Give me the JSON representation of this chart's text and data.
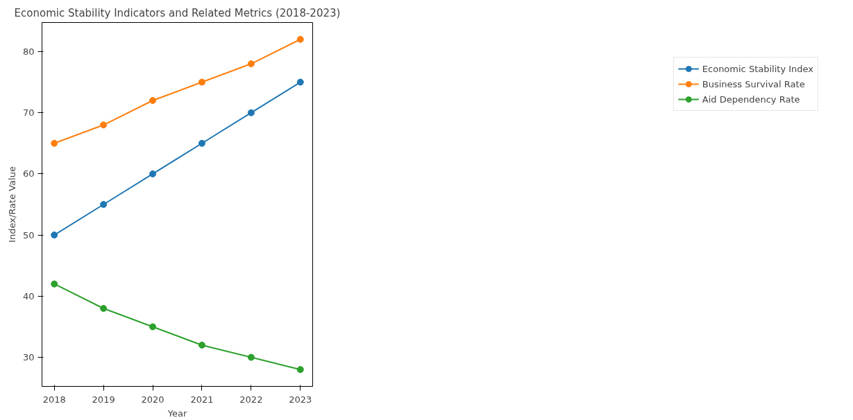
{
  "chart_data": {
    "type": "line",
    "title": "Economic Stability Indicators and Related Metrics (2018-2023)",
    "xlabel": "Year",
    "ylabel": "Index/Rate Value",
    "x": [
      2018,
      2019,
      2020,
      2021,
      2022,
      2023
    ],
    "series": [
      {
        "name": "Economic Stability Index",
        "color": "#1f77b4",
        "values": [
          50,
          55,
          60,
          65,
          70,
          75
        ]
      },
      {
        "name": "Business Survival Rate",
        "color": "#ff7f0e",
        "values": [
          65,
          68,
          72,
          75,
          78,
          82
        ]
      },
      {
        "name": "Aid Dependency Rate",
        "color": "#2ca02c",
        "values": [
          42,
          38,
          35,
          32,
          30,
          28
        ]
      }
    ],
    "xlim": [
      2017.75,
      2023.25
    ],
    "xticks": [
      2018,
      2019,
      2020,
      2021,
      2022,
      2023
    ],
    "ylim": [
      25.25,
      84.75
    ],
    "yticks": [
      30,
      40,
      50,
      60,
      70,
      80
    ],
    "grid": false,
    "legend": "top right",
    "marker": "circle",
    "line_style": "solid"
  }
}
